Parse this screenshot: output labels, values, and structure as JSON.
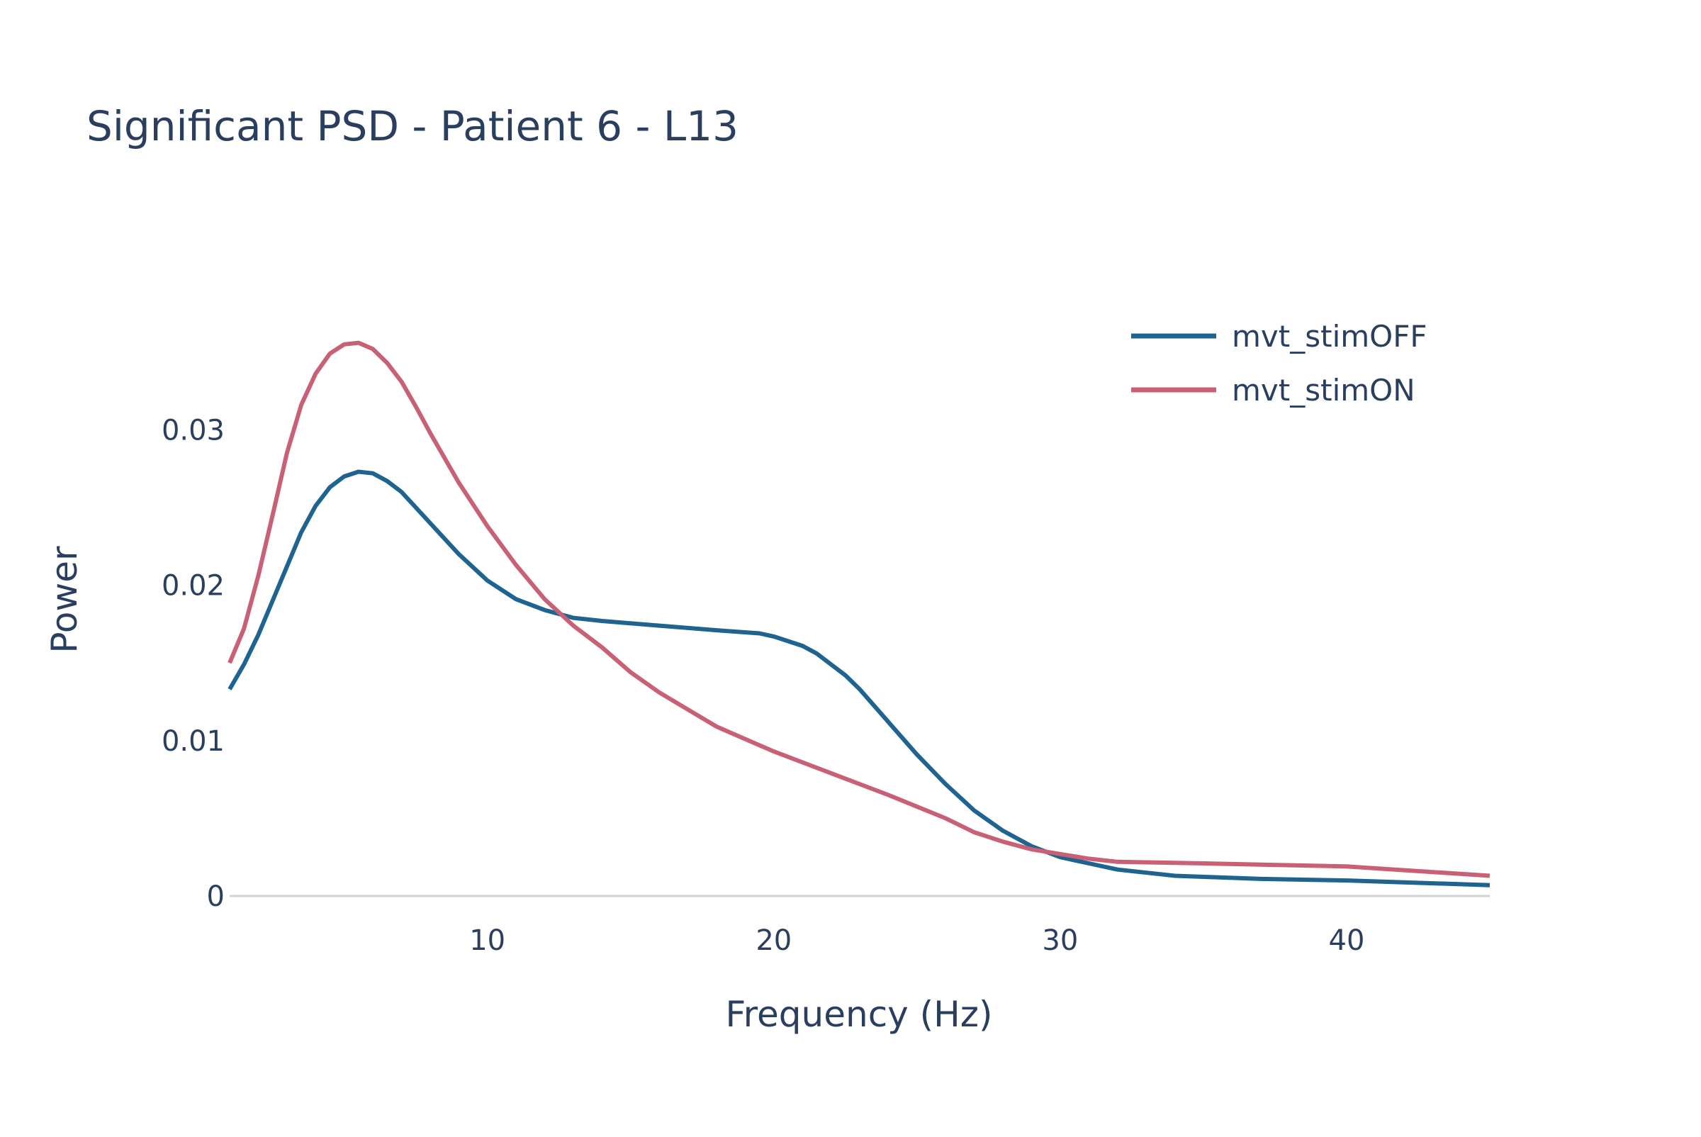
{
  "chart_data": {
    "type": "line",
    "title": "Significant PSD - Patient 6 - L13",
    "xlabel": "Frequency (Hz)",
    "ylabel": "Power",
    "xlim": [
      1,
      45
    ],
    "ylim": [
      0,
      0.0385
    ],
    "xticks": [
      10,
      20,
      30,
      40
    ],
    "xtick_labels": [
      "10",
      "20",
      "30",
      "40"
    ],
    "yticks": [
      0,
      0.01,
      0.02,
      0.03
    ],
    "ytick_labels": [
      "0",
      "0.01",
      "0.02",
      "0.03"
    ],
    "grid": false,
    "legend_position": "top-right",
    "series": [
      {
        "name": "mvt_stimOFF",
        "color": "#1f6390",
        "x": [
          1,
          1.5,
          2,
          2.5,
          3,
          3.5,
          4,
          4.5,
          5,
          5.5,
          6,
          6.5,
          7,
          8,
          9,
          10,
          11,
          12,
          13,
          14,
          16,
          18,
          19.5,
          20,
          21,
          21.5,
          22,
          22.5,
          23,
          24,
          25,
          26,
          27,
          28,
          29,
          30,
          31,
          32,
          34,
          37,
          40,
          45
        ],
        "y": [
          0.0133,
          0.0149,
          0.0168,
          0.019,
          0.0212,
          0.0234,
          0.0251,
          0.0263,
          0.027,
          0.0273,
          0.0272,
          0.0267,
          0.026,
          0.024,
          0.022,
          0.0203,
          0.0191,
          0.0184,
          0.0179,
          0.0177,
          0.0174,
          0.0171,
          0.0169,
          0.0167,
          0.0161,
          0.0156,
          0.0149,
          0.0142,
          0.0133,
          0.0112,
          0.0091,
          0.0072,
          0.0055,
          0.0042,
          0.0032,
          0.0025,
          0.0021,
          0.0017,
          0.0013,
          0.0011,
          0.001,
          0.0007
        ]
      },
      {
        "name": "mvt_stimON",
        "color": "#c96176",
        "x": [
          1,
          1.5,
          2,
          2.5,
          3,
          3.5,
          4,
          4.5,
          5,
          5.5,
          6,
          6.5,
          7,
          7.5,
          8,
          9,
          10,
          11,
          12,
          13,
          14,
          15,
          16,
          17,
          18,
          19,
          20,
          22,
          24,
          26,
          27,
          28,
          29,
          30,
          31,
          32,
          35,
          40,
          45
        ],
        "y": [
          0.015,
          0.0172,
          0.0206,
          0.0245,
          0.0285,
          0.0316,
          0.0336,
          0.0349,
          0.0355,
          0.0356,
          0.0352,
          0.0343,
          0.0331,
          0.0315,
          0.0298,
          0.0266,
          0.0238,
          0.0213,
          0.0191,
          0.0174,
          0.016,
          0.0144,
          0.0131,
          0.012,
          0.0109,
          0.0101,
          0.0093,
          0.0079,
          0.0065,
          0.005,
          0.0041,
          0.0035,
          0.003,
          0.0027,
          0.0024,
          0.0022,
          0.0021,
          0.0019,
          0.0013
        ]
      }
    ]
  }
}
